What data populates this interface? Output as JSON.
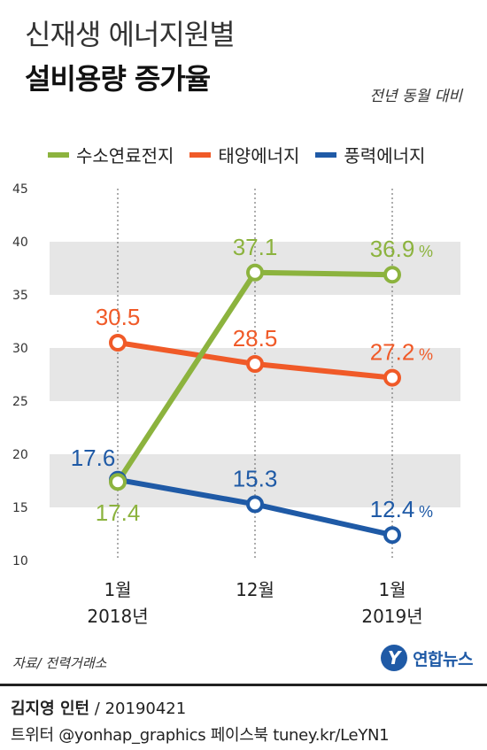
{
  "header": {
    "title_line1": "신재생 에너지원별",
    "title_line2": "설비용량 증가율",
    "subtitle": "전년 동월 대비"
  },
  "colors": {
    "hydrogen": "#8cb33e",
    "solar": "#f05a28",
    "wind": "#1f5aa6",
    "band": "#e6e6e6"
  },
  "chart_data": {
    "type": "line",
    "categories": [
      "1월\n2018년",
      "12월",
      "1월\n2019년"
    ],
    "category_lines": [
      [
        "1월",
        "2018년"
      ],
      [
        "12월"
      ],
      [
        "1월",
        "2019년"
      ]
    ],
    "ylim": [
      10,
      45
    ],
    "yticks": [
      10,
      15,
      20,
      25,
      30,
      35,
      40,
      45
    ],
    "unit": "%",
    "series": [
      {
        "name": "수소연료전지",
        "color": "#8cb33e",
        "values": [
          17.4,
          37.1,
          36.9
        ],
        "labels": [
          "17.4",
          "37.1",
          "36.9"
        ]
      },
      {
        "name": "태양에너지",
        "color": "#f05a28",
        "values": [
          30.5,
          28.5,
          27.2
        ],
        "labels": [
          "30.5",
          "28.5",
          "27.2"
        ]
      },
      {
        "name": "풍력에너지",
        "color": "#1f5aa6",
        "values": [
          17.6,
          15.3,
          12.4
        ],
        "labels": [
          "17.6",
          "15.3",
          "12.4"
        ]
      }
    ]
  },
  "footer": {
    "source": "자료/ 전력거래소",
    "logo_text": "연합뉴스",
    "logo_mark": "Y",
    "credit_name": "김지영 인턴",
    "credit_date": " / 20190421",
    "social": "트위터 @yonhap_graphics  페이스북 tuney.kr/LeYN1"
  }
}
